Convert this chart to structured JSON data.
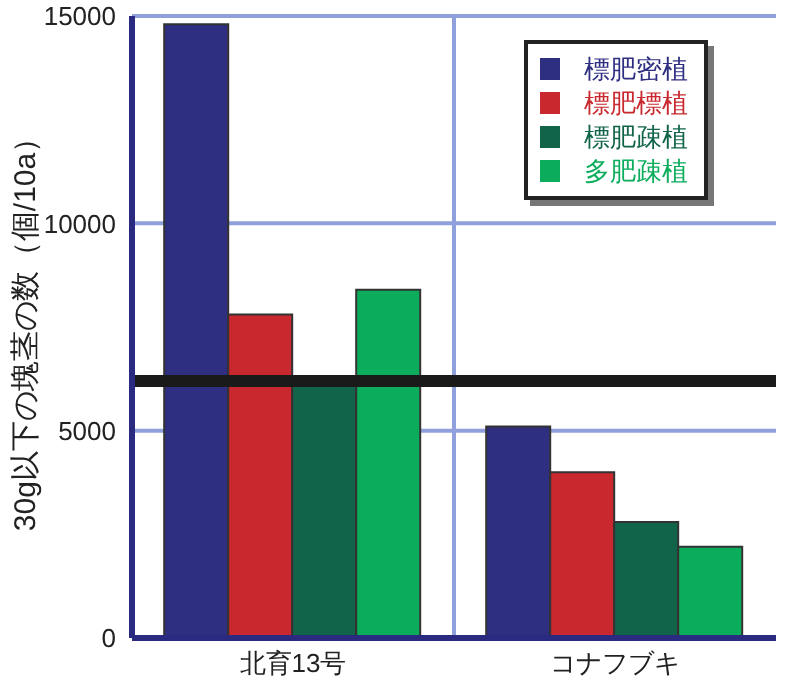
{
  "chart_data": {
    "type": "bar",
    "ylabel": "30g以下の塊茎の数（個/10a）",
    "categories": [
      "北育13号",
      "コナフブキ"
    ],
    "series": [
      {
        "name": "標肥密植",
        "color": "#2e2f80",
        "values": [
          14800,
          5100
        ]
      },
      {
        "name": "標肥標植",
        "color": "#c8282e",
        "values": [
          7800,
          4000
        ]
      },
      {
        "name": "標肥疎植",
        "color": "#11644a",
        "values": [
          6100,
          2800
        ]
      },
      {
        "name": "多肥疎植",
        "color": "#0bad5c",
        "values": [
          8400,
          2200
        ]
      }
    ],
    "ylim": [
      0,
      15000
    ],
    "yticks": [
      0,
      5000,
      10000,
      15000
    ],
    "grid": true,
    "legend": "top right",
    "ref_lines": [
      {
        "axis": "y",
        "value": 6200,
        "color": "#1a1a1a"
      }
    ]
  }
}
